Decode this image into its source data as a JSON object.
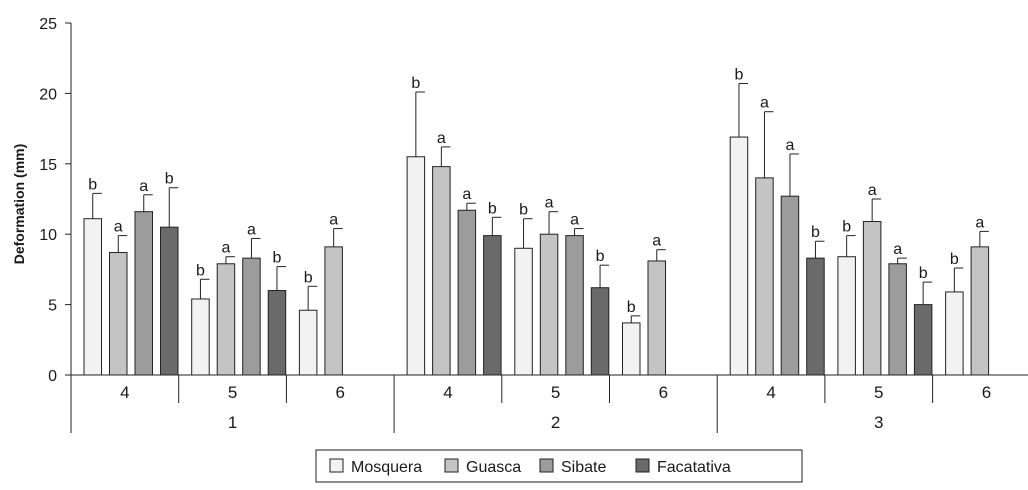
{
  "chart_data": {
    "type": "bar",
    "ylabel": "Deformation (mm)",
    "ylim": [
      0,
      25
    ],
    "yticks": [
      0,
      5,
      10,
      15,
      20,
      25
    ],
    "grid": false,
    "legend_position": "bottom-center",
    "series": [
      {
        "name": "Mosquera",
        "color": "#f2f2f2"
      },
      {
        "name": "Guasca",
        "color": "#c4c4c4"
      },
      {
        "name": "Sibate",
        "color": "#9c9c9c"
      },
      {
        "name": "Facatativa",
        "color": "#6a6a6a"
      }
    ],
    "groups": [
      {
        "label": "1",
        "subgroups": [
          {
            "label": "4",
            "bars": [
              {
                "series": "Mosquera",
                "value": 11.1,
                "error": 1.8,
                "letter": "b"
              },
              {
                "series": "Guasca",
                "value": 8.7,
                "error": 1.2,
                "letter": "a"
              },
              {
                "series": "Sibate",
                "value": 11.6,
                "error": 1.2,
                "letter": "a"
              },
              {
                "series": "Facatativa",
                "value": 10.5,
                "error": 2.8,
                "letter": "b"
              }
            ]
          },
          {
            "label": "5",
            "bars": [
              {
                "series": "Mosquera",
                "value": 5.4,
                "error": 1.4,
                "letter": "b"
              },
              {
                "series": "Guasca",
                "value": 7.9,
                "error": 0.5,
                "letter": "a"
              },
              {
                "series": "Sibate",
                "value": 8.3,
                "error": 1.4,
                "letter": "a"
              },
              {
                "series": "Facatativa",
                "value": 6.0,
                "error": 1.7,
                "letter": "b"
              }
            ]
          },
          {
            "label": "6",
            "bars": [
              {
                "series": "Mosquera",
                "value": 4.6,
                "error": 1.7,
                "letter": "b"
              },
              {
                "series": "Guasca",
                "value": 9.1,
                "error": 1.3,
                "letter": "a"
              }
            ]
          }
        ]
      },
      {
        "label": "2",
        "subgroups": [
          {
            "label": "4",
            "bars": [
              {
                "series": "Mosquera",
                "value": 15.5,
                "error": 4.6,
                "letter": "b"
              },
              {
                "series": "Guasca",
                "value": 14.8,
                "error": 1.4,
                "letter": "a"
              },
              {
                "series": "Sibate",
                "value": 11.7,
                "error": 0.5,
                "letter": "a"
              },
              {
                "series": "Facatativa",
                "value": 9.9,
                "error": 1.3,
                "letter": "b"
              }
            ]
          },
          {
            "label": "5",
            "bars": [
              {
                "series": "Mosquera",
                "value": 9.0,
                "error": 2.1,
                "letter": "b"
              },
              {
                "series": "Guasca",
                "value": 10.0,
                "error": 1.6,
                "letter": "a"
              },
              {
                "series": "Sibate",
                "value": 9.9,
                "error": 0.5,
                "letter": "a"
              },
              {
                "series": "Facatativa",
                "value": 6.2,
                "error": 1.6,
                "letter": "b"
              }
            ]
          },
          {
            "label": "6",
            "bars": [
              {
                "series": "Mosquera",
                "value": 3.7,
                "error": 0.5,
                "letter": "b"
              },
              {
                "series": "Guasca",
                "value": 8.1,
                "error": 0.8,
                "letter": "a"
              }
            ]
          }
        ]
      },
      {
        "label": "3",
        "subgroups": [
          {
            "label": "4",
            "bars": [
              {
                "series": "Mosquera",
                "value": 16.9,
                "error": 3.8,
                "letter": "b"
              },
              {
                "series": "Guasca",
                "value": 14.0,
                "error": 4.7,
                "letter": "a"
              },
              {
                "series": "Sibate",
                "value": 12.7,
                "error": 3.0,
                "letter": "a"
              },
              {
                "series": "Facatativa",
                "value": 8.3,
                "error": 1.2,
                "letter": "b"
              }
            ]
          },
          {
            "label": "5",
            "bars": [
              {
                "series": "Mosquera",
                "value": 8.4,
                "error": 1.5,
                "letter": "b"
              },
              {
                "series": "Guasca",
                "value": 10.9,
                "error": 1.6,
                "letter": "a"
              },
              {
                "series": "Sibate",
                "value": 7.9,
                "error": 0.4,
                "letter": "a"
              },
              {
                "series": "Facatativa",
                "value": 5.0,
                "error": 1.6,
                "letter": "b"
              }
            ]
          },
          {
            "label": "6",
            "bars": [
              {
                "series": "Mosquera",
                "value": 5.9,
                "error": 1.7,
                "letter": "b"
              },
              {
                "series": "Guasca",
                "value": 9.1,
                "error": 1.1,
                "letter": "a"
              }
            ]
          }
        ]
      }
    ]
  }
}
